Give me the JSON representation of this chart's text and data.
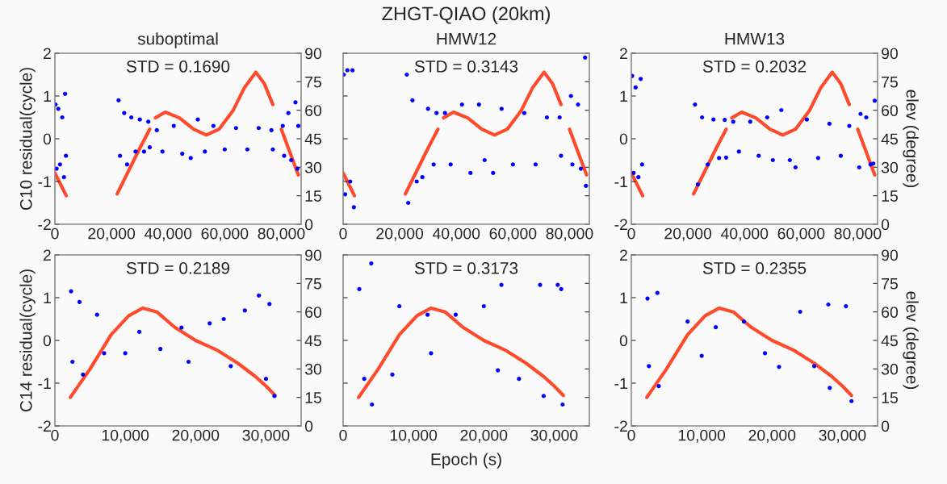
{
  "chart_data": [
    {
      "type": "scatter",
      "title": "suboptimal",
      "ylabel": "C10 residual(cycle)",
      "annotations": [
        "STD = 0.1690"
      ],
      "xlim": [
        0,
        87000
      ],
      "xticks": [
        0,
        {
          "value": 20000,
          "label": "20,000"
        },
        {
          "value": 40000,
          "label": "40,000"
        },
        {
          "value": 60000,
          "label": "60,000"
        },
        {
          "value": 80000,
          "label": "80,000"
        }
      ],
      "ylim": [
        -2,
        2
      ],
      "yticks": [
        -2,
        -1,
        0,
        1,
        2
      ],
      "y2lim": [
        0,
        90
      ],
      "y2ticks": [
        0,
        15,
        30,
        45,
        60,
        75,
        90
      ],
      "grid": false,
      "legend": false,
      "series": [
        {
          "type": "scatter",
          "marker": "circle",
          "color": "#0000ff",
          "x": [
            200,
            600,
            1200,
            1800,
            2600,
            3200,
            3600,
            3900,
            22500,
            23000,
            24500,
            25500,
            27000,
            28500,
            30000,
            31500,
            33000,
            33500,
            36000,
            38000,
            42000,
            45000,
            48000,
            50500,
            53000,
            56000,
            60000,
            64000,
            68000,
            72000,
            76500,
            77000,
            80500,
            81000,
            82500,
            83500,
            85000,
            85700,
            86000
          ],
          "values": [
            0.8,
            -0.7,
            0.7,
            -0.6,
            0.5,
            -0.9,
            1.05,
            -0.4,
            0.9,
            -0.4,
            0.6,
            -0.6,
            0.5,
            -0.3,
            0.45,
            -0.3,
            0.4,
            -0.2,
            0.2,
            -0.3,
            0.3,
            -0.35,
            -0.45,
            0.45,
            -0.3,
            0.3,
            -0.25,
            0.25,
            -0.25,
            0.25,
            0.2,
            -0.25,
            0.3,
            -0.4,
            0.6,
            -0.5,
            0.85,
            -0.7,
            0.3
          ]
        },
        {
          "type": "line",
          "axis": "y2",
          "color": "#ff4b2b",
          "x": [
            0,
            2000,
            4000,
            13000,
            22000,
            26000,
            30000,
            33500,
            34500,
            35500,
            39000,
            44000,
            49000,
            53500,
            58000,
            63000,
            67000,
            71000,
            74000,
            77000,
            78500,
            80000,
            83000,
            86000
          ],
          "values": [
            27,
            21,
            15,
            null,
            16,
            28,
            40,
            50,
            null,
            56,
            59,
            56,
            50,
            47,
            50,
            60,
            72,
            80,
            74,
            63,
            null,
            50,
            38,
            26
          ]
        }
      ]
    },
    {
      "type": "scatter",
      "title": "ZHGT-QIAO (20km)",
      "subtitle": "HMW12",
      "annotations": [
        "STD = 0.3143"
      ],
      "xlim": [
        0,
        87000
      ],
      "xticks": [
        0,
        {
          "value": 20000,
          "label": "20,000"
        },
        {
          "value": 40000,
          "label": "40,000"
        },
        {
          "value": 60000,
          "label": "60,000"
        },
        {
          "value": 80000,
          "label": "80,000"
        }
      ],
      "ylim": [
        -2,
        2
      ],
      "yticks": [
        -2,
        -1,
        0,
        1,
        2
      ],
      "y2lim": [
        0,
        90
      ],
      "y2ticks": [
        0,
        15,
        30,
        45,
        60,
        75,
        90
      ],
      "tick_labels": "x",
      "grid": false,
      "legend": false,
      "series": [
        {
          "type": "scatter",
          "marker": "circle",
          "color": "#0000ff",
          "x": [
            200,
            700,
            1500,
            2500,
            3300,
            3800,
            22500,
            23000,
            24500,
            26000,
            28000,
            30000,
            32000,
            33000,
            36000,
            38000,
            42000,
            45000,
            48000,
            50000,
            53000,
            56000,
            60000,
            64000,
            68000,
            72000,
            76500,
            77000,
            80500,
            81000,
            83000,
            84000,
            85500,
            85800
          ],
          "values": [
            1.5,
            -1.3,
            1.6,
            -1.0,
            1.6,
            -1.6,
            1.5,
            -1.5,
            0.9,
            -1.0,
            -0.9,
            0.7,
            -0.6,
            0.6,
            0.6,
            -0.6,
            0.8,
            -0.8,
            0.8,
            -0.5,
            -0.8,
            0.7,
            -0.6,
            0.6,
            -0.6,
            0.5,
            0.5,
            -0.4,
            1.0,
            -0.6,
            0.8,
            -0.7,
            1.9,
            -1.1
          ]
        },
        {
          "type": "line",
          "axis": "y2",
          "color": "#ff4b2b",
          "x": [
            0,
            2000,
            4000,
            13000,
            22000,
            26000,
            30000,
            33500,
            34500,
            35500,
            39000,
            44000,
            49000,
            53500,
            58000,
            63000,
            67000,
            71000,
            74000,
            77000,
            78500,
            80000,
            83000,
            86000
          ],
          "values": [
            27,
            21,
            15,
            null,
            16,
            28,
            40,
            50,
            null,
            56,
            59,
            56,
            50,
            47,
            50,
            60,
            72,
            80,
            74,
            63,
            null,
            50,
            38,
            26
          ]
        }
      ]
    },
    {
      "type": "scatter",
      "title": "HMW13",
      "y2label": "elev (degree)",
      "annotations": [
        "STD = 0.2032"
      ],
      "xlim": [
        0,
        87000
      ],
      "xticks": [
        0,
        {
          "value": 20000,
          "label": "20,000"
        },
        {
          "value": 40000,
          "label": "40,000"
        },
        {
          "value": 60000,
          "label": "60,000"
        },
        {
          "value": 80000,
          "label": "80,000"
        }
      ],
      "ylim": [
        -2,
        2
      ],
      "yticks": [
        -2,
        -1,
        0,
        1,
        2
      ],
      "y2lim": [
        0,
        90
      ],
      "y2ticks": [
        0,
        15,
        30,
        45,
        60,
        75,
        90
      ],
      "grid": false,
      "legend": false,
      "series": [
        {
          "type": "scatter",
          "marker": "circle",
          "color": "#0000ff",
          "x": [
            300,
            800,
            1500,
            2500,
            3300,
            3800,
            22500,
            23500,
            25000,
            27000,
            29000,
            31000,
            33000,
            33500,
            36000,
            38000,
            42000,
            45000,
            48000,
            50000,
            53000,
            56000,
            58000,
            62000,
            66000,
            70000,
            74000,
            77000,
            80500,
            81000,
            83000,
            84500,
            86000,
            85500
          ],
          "values": [
            1.47,
            -0.8,
            1.2,
            -0.9,
            1.4,
            -0.6,
            0.8,
            -1.07,
            0.5,
            -0.6,
            0.45,
            -0.45,
            0.44,
            -0.44,
            0.4,
            -0.3,
            0.4,
            -0.4,
            0.5,
            -0.5,
            0.67,
            -0.5,
            -0.67,
            0.45,
            -0.45,
            0.35,
            -0.4,
            0.3,
            -0.67,
            0.58,
            0.5,
            -0.6,
            0.89,
            -0.58
          ]
        },
        {
          "type": "line",
          "axis": "y2",
          "color": "#ff4b2b",
          "x": [
            0,
            2000,
            4000,
            13000,
            22000,
            26000,
            30000,
            33500,
            34500,
            35500,
            39000,
            44000,
            49000,
            53500,
            58000,
            63000,
            67000,
            71000,
            74000,
            77000,
            78500,
            80000,
            83000,
            86000
          ],
          "values": [
            27,
            21,
            15,
            null,
            16,
            28,
            40,
            50,
            null,
            56,
            59,
            56,
            50,
            47,
            50,
            60,
            72,
            80,
            74,
            63,
            null,
            50,
            38,
            26
          ]
        }
      ]
    },
    {
      "type": "scatter",
      "ylabel": "C14 residual(cycle)",
      "annotations": [
        "STD = 0.2189"
      ],
      "xlim": [
        0,
        35000
      ],
      "xticks": [
        0,
        {
          "value": 10000,
          "label": "10,000"
        },
        {
          "value": 20000,
          "label": "20,000"
        },
        {
          "value": 30000,
          "label": "30,000"
        }
      ],
      "ylim": [
        -2,
        2
      ],
      "yticks": [
        -2,
        -1,
        0,
        1,
        2
      ],
      "y2lim": [
        0,
        90
      ],
      "y2ticks": [
        0,
        15,
        30,
        45,
        60,
        75,
        90
      ],
      "grid": false,
      "legend": false,
      "series": [
        {
          "type": "scatter",
          "marker": "circle",
          "color": "#0000ff",
          "x": [
            2300,
            2500,
            3500,
            4000,
            6000,
            7000,
            10000,
            12000,
            15000,
            18000,
            19000,
            22000,
            24000,
            25000,
            27000,
            29000,
            30000,
            30500,
            31200
          ],
          "values": [
            1.15,
            -0.5,
            0.9,
            -0.8,
            0.6,
            -0.3,
            -0.3,
            0.2,
            -0.2,
            0.3,
            -0.5,
            0.4,
            0.5,
            -0.6,
            0.7,
            1.05,
            -0.9,
            0.85,
            -1.3
          ]
        },
        {
          "type": "line",
          "axis": "y2",
          "color": "#ff4b2b",
          "x": [
            2200,
            5000,
            8000,
            10500,
            12500,
            14500,
            17000,
            20000,
            23000,
            26000,
            28500,
            30000,
            31300
          ],
          "values": [
            15,
            30,
            48,
            58,
            62,
            60,
            52,
            45,
            40,
            33,
            26,
            21,
            16
          ]
        }
      ]
    },
    {
      "type": "scatter",
      "xlabel": "Epoch (s)",
      "annotations": [
        "STD = 0.3173"
      ],
      "xlim": [
        0,
        35000
      ],
      "xticks": [
        0,
        {
          "value": 10000,
          "label": "10,000"
        },
        {
          "value": 20000,
          "label": "20,000"
        },
        {
          "value": 30000,
          "label": "30,000"
        }
      ],
      "ylim": [
        -2,
        2
      ],
      "yticks": [
        -2,
        -1,
        0,
        1,
        2
      ],
      "y2lim": [
        0,
        90
      ],
      "y2ticks": [
        0,
        15,
        30,
        45,
        60,
        75,
        90
      ],
      "tick_labels": "x",
      "grid": false,
      "legend": false,
      "series": [
        {
          "type": "scatter",
          "marker": "circle",
          "color": "#0000ff",
          "x": [
            2300,
            3000,
            4000,
            4100,
            7000,
            8000,
            12000,
            12500,
            16000,
            20000,
            22000,
            22500,
            25000,
            28000,
            28500,
            30500,
            31000,
            31200
          ],
          "values": [
            1.2,
            -0.9,
            1.8,
            -1.5,
            -0.8,
            0.8,
            0.6,
            -0.3,
            0.6,
            0.8,
            -0.7,
            1.3,
            -0.9,
            1.3,
            -1.3,
            1.3,
            1.2,
            -1.5
          ]
        },
        {
          "type": "line",
          "axis": "y2",
          "color": "#ff4b2b",
          "x": [
            2200,
            5000,
            8000,
            10500,
            12500,
            14500,
            17000,
            20000,
            23000,
            26000,
            28500,
            30000,
            31300
          ],
          "values": [
            15,
            30,
            48,
            58,
            62,
            60,
            52,
            45,
            40,
            33,
            26,
            21,
            16
          ]
        }
      ]
    },
    {
      "type": "scatter",
      "y2label": "elev (degree)",
      "annotations": [
        "STD = 0.2355"
      ],
      "xlim": [
        0,
        35000
      ],
      "xticks": [
        0,
        {
          "value": 10000,
          "label": "10,000"
        },
        {
          "value": 20000,
          "label": "20,000"
        },
        {
          "value": 30000,
          "label": "30,000"
        }
      ],
      "ylim": [
        -2,
        2
      ],
      "yticks": [
        -2,
        -1,
        0,
        1,
        2
      ],
      "y2lim": [
        0,
        90
      ],
      "y2ticks": [
        0,
        15,
        30,
        45,
        60,
        75,
        90
      ],
      "grid": false,
      "legend": false,
      "series": [
        {
          "type": "scatter",
          "marker": "circle",
          "color": "#0000ff",
          "x": [
            2300,
            2500,
            3700,
            3900,
            8000,
            10000,
            12000,
            16000,
            19000,
            21000,
            24000,
            26000,
            28000,
            28200,
            30500,
            31300
          ],
          "values": [
            0.98,
            -0.6,
            1.11,
            -1.07,
            0.44,
            -0.36,
            0.31,
            0.44,
            -0.3,
            -0.62,
            0.67,
            -0.6,
            0.84,
            -1.11,
            0.8,
            -1.42
          ]
        },
        {
          "type": "line",
          "axis": "y2",
          "color": "#ff4b2b",
          "x": [
            2200,
            5000,
            8000,
            10500,
            12500,
            14500,
            17000,
            20000,
            23000,
            26000,
            28500,
            30000,
            31300
          ],
          "values": [
            15,
            30,
            48,
            58,
            62,
            60,
            52,
            45,
            40,
            33,
            26,
            21,
            16
          ]
        }
      ]
    }
  ]
}
